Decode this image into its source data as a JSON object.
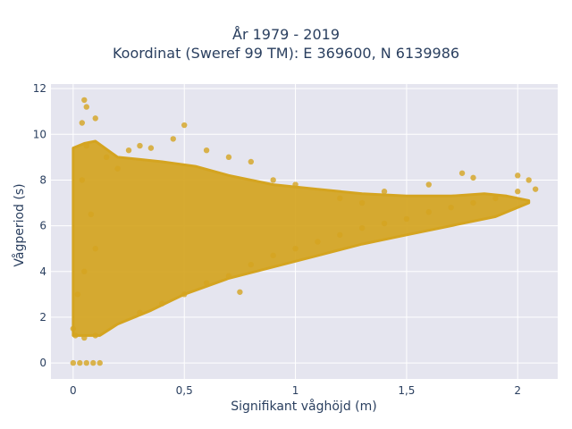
{
  "chart_data": {
    "type": "scatter",
    "title_lines": [
      "År 1979 - 2019",
      "Koordinat (Sweref 99 TM): E 369600, N 6139986"
    ],
    "xlabel": "Signifikant våghöjd (m)",
    "ylabel": "Vågperiod (s)",
    "xlim": [
      -0.1,
      2.18
    ],
    "ylim": [
      -0.7,
      12.2
    ],
    "x_ticks": [
      0,
      0.5,
      1,
      1.5,
      2
    ],
    "x_tick_labels": [
      "0",
      "0,5",
      "1",
      "1,5",
      "2"
    ],
    "y_ticks": [
      0,
      2,
      4,
      6,
      8,
      10,
      12
    ],
    "y_tick_labels": [
      "0",
      "2",
      "4",
      "6",
      "8",
      "10",
      "12"
    ],
    "grid": true,
    "marker_color": "#d4a420",
    "plot_background": "#e5e5ef",
    "series": [
      {
        "points": [
          [
            0.0,
            0.0
          ],
          [
            0.03,
            0.0
          ],
          [
            0.06,
            0.0
          ],
          [
            0.09,
            0.0
          ],
          [
            0.12,
            0.0
          ],
          [
            0.0,
            1.5
          ],
          [
            0.01,
            1.2
          ],
          [
            0.05,
            1.1
          ],
          [
            0.1,
            1.2
          ],
          [
            0.02,
            3.0
          ],
          [
            0.05,
            4.0
          ],
          [
            0.1,
            5.0
          ],
          [
            0.08,
            6.5
          ],
          [
            0.04,
            8.0
          ],
          [
            0.06,
            9.5
          ],
          [
            0.04,
            10.5
          ],
          [
            0.1,
            10.7
          ],
          [
            0.06,
            11.2
          ],
          [
            0.05,
            11.5
          ],
          [
            0.15,
            9.0
          ],
          [
            0.2,
            8.5
          ],
          [
            0.25,
            9.3
          ],
          [
            0.3,
            9.5
          ],
          [
            0.35,
            9.4
          ],
          [
            0.45,
            9.8
          ],
          [
            0.5,
            10.4
          ],
          [
            0.6,
            9.3
          ],
          [
            0.7,
            9.0
          ],
          [
            0.8,
            8.8
          ],
          [
            0.3,
            2.2
          ],
          [
            0.4,
            2.6
          ],
          [
            0.5,
            3.0
          ],
          [
            0.6,
            3.5
          ],
          [
            0.7,
            3.8
          ],
          [
            0.8,
            4.3
          ],
          [
            0.9,
            4.7
          ],
          [
            1.0,
            5.0
          ],
          [
            1.1,
            5.3
          ],
          [
            1.2,
            5.6
          ],
          [
            1.3,
            5.9
          ],
          [
            1.4,
            6.1
          ],
          [
            1.5,
            6.3
          ],
          [
            1.6,
            6.6
          ],
          [
            1.7,
            6.8
          ],
          [
            1.8,
            7.0
          ],
          [
            1.9,
            7.2
          ],
          [
            2.0,
            7.5
          ],
          [
            2.05,
            8.0
          ],
          [
            2.08,
            7.6
          ],
          [
            1.8,
            8.1
          ],
          [
            1.6,
            7.8
          ],
          [
            1.4,
            7.5
          ],
          [
            1.2,
            7.2
          ],
          [
            1.0,
            7.8
          ],
          [
            0.75,
            3.1
          ],
          [
            2.0,
            8.2
          ],
          [
            1.75,
            8.3
          ],
          [
            1.3,
            7.0
          ],
          [
            0.9,
            8.0
          ]
        ]
      }
    ]
  }
}
